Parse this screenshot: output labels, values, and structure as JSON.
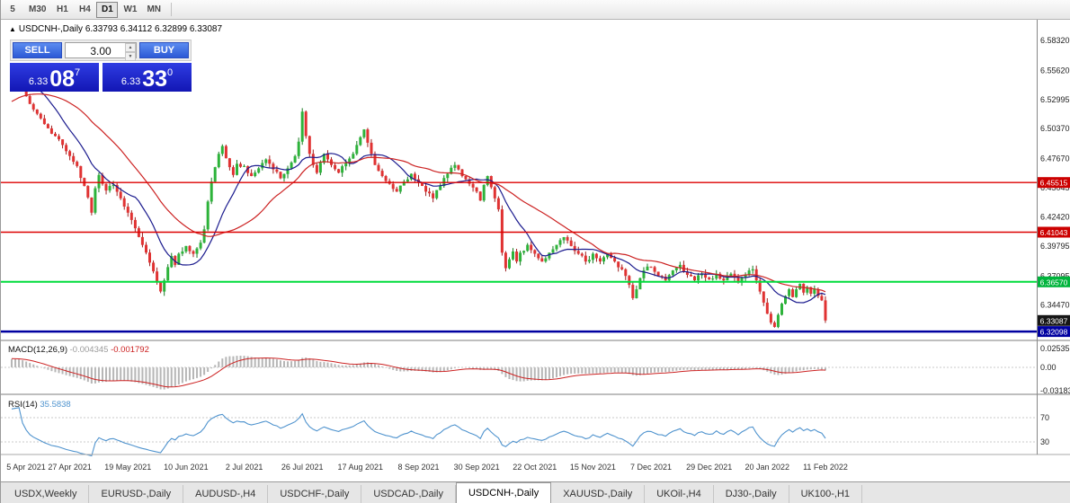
{
  "toolbar": {
    "timeframes": [
      {
        "label": "5",
        "active": false
      },
      {
        "label": "M30",
        "active": false
      },
      {
        "label": "H1",
        "active": false
      },
      {
        "label": "H4",
        "active": false
      },
      {
        "label": "D1",
        "active": true
      },
      {
        "label": "W1",
        "active": false
      },
      {
        "label": "MN",
        "active": false
      }
    ]
  },
  "icons": {
    "collapse": "▲",
    "spinner_up": "▲",
    "spinner_down": "▼"
  },
  "chart": {
    "symbol_title": "USDCNH-,Daily",
    "ohlc_text": "6.33793 6.34112 6.32899 6.33087",
    "trade_panel": {
      "sell_label": "SELL",
      "buy_label": "BUY",
      "volume": "3.00",
      "sell_price": {
        "prefix": "6.33",
        "big": "08",
        "sup": "7"
      },
      "buy_price": {
        "prefix": "6.33",
        "big": "33",
        "sup": "0"
      }
    }
  },
  "price_axis": {
    "ticks": [
      "6.58320",
      "6.55620",
      "6.52995",
      "6.50370",
      "6.47670",
      "6.45045",
      "6.42420",
      "6.39795",
      "6.37095",
      "6.34470"
    ],
    "badges": [
      {
        "value": "6.45515",
        "price": 6.45515,
        "color": "#cc0000",
        "text_color": "#ffffff"
      },
      {
        "value": "6.41043",
        "price": 6.41043,
        "color": "#cc0000",
        "text_color": "#ffffff"
      },
      {
        "value": "6.36570",
        "price": 6.3657,
        "color": "#00b43c",
        "text_color": "#ffffff"
      },
      {
        "value": "6.33087",
        "price": 6.33087,
        "color": "#161616",
        "text_color": "#ffffff"
      },
      {
        "value": "6.32098",
        "price": 6.32098,
        "color": "#0000a0",
        "text_color": "#ffffff"
      }
    ]
  },
  "time_axis": {
    "labels": [
      {
        "text": "5 Apr 2021",
        "day": 0
      },
      {
        "text": "27 Apr 2021",
        "day": 16
      },
      {
        "text": "19 May 2021",
        "day": 32
      },
      {
        "text": "10 Jun 2021",
        "day": 48
      },
      {
        "text": "2 Jul 2021",
        "day": 64
      },
      {
        "text": "26 Jul 2021",
        "day": 80
      },
      {
        "text": "17 Aug 2021",
        "day": 96
      },
      {
        "text": "8 Sep 2021",
        "day": 112
      },
      {
        "text": "30 Sep 2021",
        "day": 128
      },
      {
        "text": "22 Oct 2021",
        "day": 144
      },
      {
        "text": "15 Nov 2021",
        "day": 160
      },
      {
        "text": "7 Dec 2021",
        "day": 176
      },
      {
        "text": "29 Dec 2021",
        "day": 192
      },
      {
        "text": "20 Jan 2022",
        "day": 208
      },
      {
        "text": "11 Feb 2022",
        "day": 224
      }
    ]
  },
  "indicators": {
    "macd": {
      "name": "MACD(12,26,9)",
      "main_value": "-0.004345",
      "signal_value": "-0.001792",
      "axis_ticks": [
        "0.025357",
        "0.00",
        "-0.03183"
      ]
    },
    "rsi": {
      "name": "RSI(14)",
      "value": "35.5838",
      "axis_ticks": [
        "70",
        "30"
      ]
    }
  },
  "tabs": [
    {
      "label": "USDX,Weekly",
      "active": false
    },
    {
      "label": "EURUSD-,Daily",
      "active": false
    },
    {
      "label": "AUDUSD-,H4",
      "active": false
    },
    {
      "label": "USDCHF-,Daily",
      "active": false
    },
    {
      "label": "USDCAD-,Daily",
      "active": false
    },
    {
      "label": "USDCNH-,Daily",
      "active": true
    },
    {
      "label": "XAUUSD-,Daily",
      "active": false
    },
    {
      "label": "UKOil-,H4",
      "active": false
    },
    {
      "label": "DJ30-,Daily",
      "active": false
    },
    {
      "label": "UK100-,H1",
      "active": false
    }
  ],
  "colors": {
    "bull": "#2db33a",
    "bear": "#e03232",
    "bull_wick": "#157a20",
    "bear_wick": "#9c1f1f",
    "ma_fast": "#1b1b8e",
    "ma_slow": "#cc2222",
    "line_red": "#dd0000",
    "line_green": "#00dc3c",
    "line_blue": "#0000a0",
    "macd_hist": "#b6b6b6",
    "macd_signal": "#cc2222",
    "rsi_line": "#4f93ce"
  },
  "chart_data": {
    "type": "candlestick",
    "symbol": "USDCNH-",
    "timeframe": "Daily",
    "title": "USDCNH-,Daily",
    "last_ohlc": {
      "open": 6.33793,
      "high": 6.34112,
      "low": 6.32899,
      "close": 6.33087
    },
    "levels": {
      "resistance": [
        6.45515,
        6.41043
      ],
      "support_green": 6.3657,
      "support_blue": 6.32098,
      "last_price": 6.33087
    },
    "y_range": [
      6.3137,
      6.6015
    ],
    "x_range": [
      "5 Apr 2021",
      "11 Feb 2022"
    ],
    "macd_panel": {
      "last_main": -0.004345,
      "last_signal": -0.001792,
      "axis_range": [
        -0.03183,
        0.025357
      ]
    },
    "rsi_panel": {
      "last": 35.5838,
      "levels": [
        70,
        30
      ]
    },
    "pre_path": [
      [
        -40,
        6.475
      ],
      [
        -32,
        6.492
      ],
      [
        -24,
        6.51
      ],
      [
        -16,
        6.528
      ],
      [
        -8,
        6.542
      ],
      [
        -1,
        6.55
      ]
    ],
    "price_path": [
      [
        0,
        6.548
      ],
      [
        2,
        6.552
      ],
      [
        3,
        6.541
      ],
      [
        4,
        6.533
      ],
      [
        6,
        6.521
      ],
      [
        8,
        6.513
      ],
      [
        10,
        6.504
      ],
      [
        12,
        6.497
      ],
      [
        14,
        6.489
      ],
      [
        16,
        6.479
      ],
      [
        18,
        6.47
      ],
      [
        20,
        6.452
      ],
      [
        22,
        6.428
      ],
      [
        23,
        6.45
      ],
      [
        24,
        6.462
      ],
      [
        26,
        6.448
      ],
      [
        28,
        6.453
      ],
      [
        30,
        6.441
      ],
      [
        32,
        6.428
      ],
      [
        34,
        6.414
      ],
      [
        36,
        6.399
      ],
      [
        38,
        6.383
      ],
      [
        40,
        6.366
      ],
      [
        41,
        6.357
      ],
      [
        42,
        6.367
      ],
      [
        43,
        6.379
      ],
      [
        44,
        6.389
      ],
      [
        45,
        6.381
      ],
      [
        46,
        6.391
      ],
      [
        48,
        6.398
      ],
      [
        50,
        6.391
      ],
      [
        52,
        6.401
      ],
      [
        53,
        6.413
      ],
      [
        54,
        6.438
      ],
      [
        55,
        6.456
      ],
      [
        56,
        6.469
      ],
      [
        57,
        6.481
      ],
      [
        58,
        6.488
      ],
      [
        59,
        6.477
      ],
      [
        60,
        6.469
      ],
      [
        61,
        6.462
      ],
      [
        62,
        6.472
      ],
      [
        64,
        6.47
      ],
      [
        66,
        6.461
      ],
      [
        68,
        6.468
      ],
      [
        70,
        6.476
      ],
      [
        72,
        6.467
      ],
      [
        74,
        6.459
      ],
      [
        76,
        6.468
      ],
      [
        78,
        6.479
      ],
      [
        79,
        6.492
      ],
      [
        80,
        6.519
      ],
      [
        81,
        6.497
      ],
      [
        82,
        6.481
      ],
      [
        83,
        6.471
      ],
      [
        84,
        6.464
      ],
      [
        85,
        6.473
      ],
      [
        86,
        6.481
      ],
      [
        88,
        6.471
      ],
      [
        90,
        6.464
      ],
      [
        92,
        6.473
      ],
      [
        94,
        6.481
      ],
      [
        95,
        6.489
      ],
      [
        96,
        6.496
      ],
      [
        97,
        6.503
      ],
      [
        98,
        6.491
      ],
      [
        99,
        6.481
      ],
      [
        100,
        6.471
      ],
      [
        102,
        6.461
      ],
      [
        104,
        6.454
      ],
      [
        106,
        6.447
      ],
      [
        108,
        6.456
      ],
      [
        110,
        6.463
      ],
      [
        112,
        6.455
      ],
      [
        114,
        6.447
      ],
      [
        116,
        6.441
      ],
      [
        118,
        6.452
      ],
      [
        120,
        6.463
      ],
      [
        122,
        6.471
      ],
      [
        124,
        6.461
      ],
      [
        126,
        6.454
      ],
      [
        128,
        6.447
      ],
      [
        129,
        6.439
      ],
      [
        130,
        6.453
      ],
      [
        131,
        6.461
      ],
      [
        132,
        6.451
      ],
      [
        133,
        6.441
      ],
      [
        134,
        6.431
      ],
      [
        135,
        6.392
      ],
      [
        136,
        6.378
      ],
      [
        137,
        6.386
      ],
      [
        138,
        6.393
      ],
      [
        139,
        6.384
      ],
      [
        140,
        6.392
      ],
      [
        142,
        6.399
      ],
      [
        144,
        6.391
      ],
      [
        146,
        6.384
      ],
      [
        148,
        6.392
      ],
      [
        150,
        6.399
      ],
      [
        152,
        6.406
      ],
      [
        154,
        6.398
      ],
      [
        156,
        6.391
      ],
      [
        158,
        6.384
      ],
      [
        160,
        6.391
      ],
      [
        162,
        6.384
      ],
      [
        164,
        6.391
      ],
      [
        166,
        6.384
      ],
      [
        168,
        6.377
      ],
      [
        169,
        6.371
      ],
      [
        170,
        6.363
      ],
      [
        171,
        6.351
      ],
      [
        172,
        6.359
      ],
      [
        173,
        6.369
      ],
      [
        174,
        6.376
      ],
      [
        176,
        6.379
      ],
      [
        178,
        6.371
      ],
      [
        180,
        6.367
      ],
      [
        182,
        6.376
      ],
      [
        184,
        6.381
      ],
      [
        186,
        6.372
      ],
      [
        188,
        6.367
      ],
      [
        190,
        6.373
      ],
      [
        192,
        6.368
      ],
      [
        194,
        6.373
      ],
      [
        196,
        6.367
      ],
      [
        198,
        6.373
      ],
      [
        200,
        6.365
      ],
      [
        202,
        6.372
      ],
      [
        204,
        6.377
      ],
      [
        205,
        6.367
      ],
      [
        206,
        6.357
      ],
      [
        207,
        6.347
      ],
      [
        208,
        6.337
      ],
      [
        209,
        6.329
      ],
      [
        210,
        6.325
      ],
      [
        211,
        6.336
      ],
      [
        212,
        6.346
      ],
      [
        213,
        6.353
      ],
      [
        214,
        6.359
      ],
      [
        215,
        6.352
      ],
      [
        216,
        6.359
      ],
      [
        217,
        6.364
      ],
      [
        218,
        6.356
      ],
      [
        219,
        6.361
      ],
      [
        220,
        6.355
      ],
      [
        221,
        6.359
      ],
      [
        222,
        6.353
      ],
      [
        223,
        6.349
      ],
      [
        224,
        6.33087
      ]
    ]
  }
}
